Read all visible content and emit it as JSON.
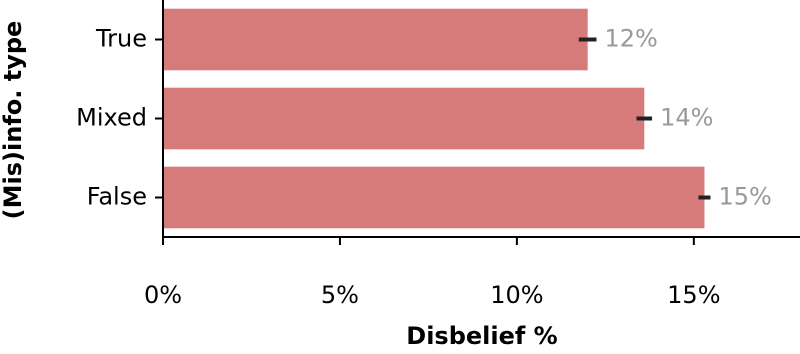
{
  "chart_data": {
    "type": "barh",
    "categories": [
      "True",
      "Mixed",
      "False"
    ],
    "values": [
      12.0,
      13.6,
      15.3
    ],
    "errors": [
      0.25,
      0.22,
      0.17
    ],
    "value_labels": [
      "12%",
      "14%",
      "15%"
    ],
    "color": "#d67b7a",
    "xlabel": "Disbelief %",
    "ylabel": "(Mis)info. type",
    "xlim": [
      0,
      18
    ],
    "xticks": [
      {
        "value": 0,
        "label": "0%"
      },
      {
        "value": 5,
        "label": "5%"
      },
      {
        "value": 10,
        "label": "10%"
      },
      {
        "value": 15,
        "label": "15%"
      }
    ]
  }
}
